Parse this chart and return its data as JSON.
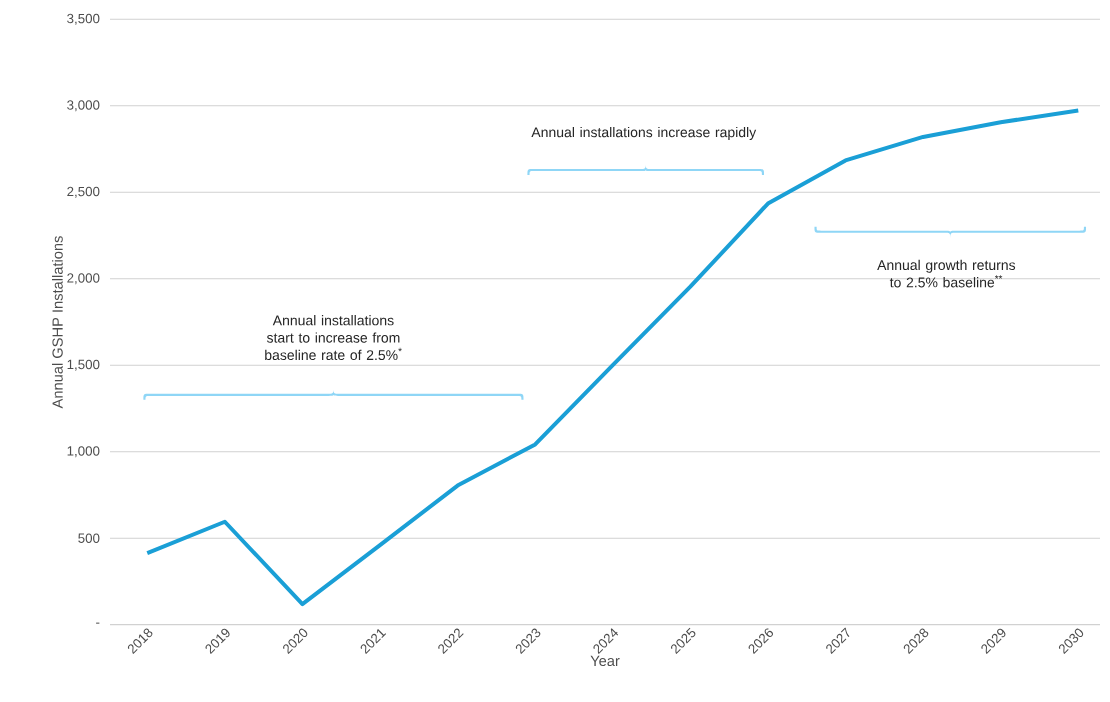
{
  "chart_data": {
    "type": "line",
    "xlabel": "Year",
    "ylabel": "Annual GSHP Installations",
    "categories": [
      "2018",
      "2019",
      "2020",
      "2021",
      "2022",
      "2023",
      "2024",
      "2025",
      "2026",
      "2027",
      "2028",
      "2029",
      "2030"
    ],
    "series": [
      {
        "color": "#1a9fd6",
        "values": [
          413,
          595,
          119,
          460,
          804,
          1042,
          1500,
          1954,
          2435,
          2684,
          2820,
          2905,
          2973
        ]
      }
    ],
    "ylim": [
      0,
      3500
    ],
    "yticks": [
      {
        "value": 0,
        "label": "-"
      },
      500,
      {
        "value": 1000,
        "label": "1,000"
      },
      {
        "value": 1500,
        "label": "1,500"
      },
      {
        "value": 2000,
        "label": "2,000"
      },
      {
        "value": 2500,
        "label": "2,500"
      },
      {
        "value": 3000,
        "label": "3,000"
      },
      {
        "value": 3500,
        "label": "3,500"
      }
    ],
    "grid": "y",
    "legend": false,
    "marker": "none",
    "line_style": "solid",
    "annotations": [
      "Annual installations start to increase from baseline rate of 2.5%$^{*}$",
      "Annual installations increase rapidly",
      "Annual growth returns to 2.5% baseline$^{**}$"
    ]
  }
}
